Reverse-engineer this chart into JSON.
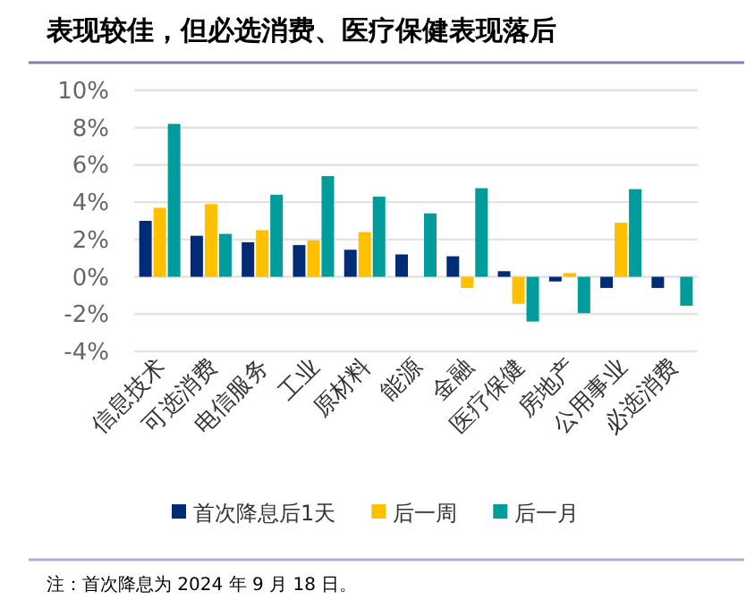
{
  "chart_data": {
    "type": "bar",
    "title": "表现较佳，但必选消费、医疗保健表现落后",
    "categories": [
      "信息技术",
      "可选消费",
      "电信服务",
      "工业",
      "原材料",
      "能源",
      "金融",
      "医疗保健",
      "房地产",
      "公用事业",
      "必选消费"
    ],
    "series": [
      {
        "name": "首次降息后1天",
        "color": "#002c77",
        "values": [
          3.0,
          2.2,
          1.85,
          1.7,
          1.45,
          1.2,
          1.1,
          0.3,
          -0.25,
          -0.6,
          -0.6
        ]
      },
      {
        "name": "后一周",
        "color": "#ffc000",
        "values": [
          3.7,
          3.9,
          2.5,
          1.95,
          2.4,
          null,
          -0.6,
          -1.45,
          0.2,
          2.9,
          null
        ]
      },
      {
        "name": "后一月",
        "color": "#009b9b",
        "values": [
          8.2,
          2.3,
          4.4,
          5.4,
          4.3,
          3.4,
          4.75,
          -2.4,
          -1.95,
          4.7,
          -1.55
        ]
      }
    ],
    "ylim": [
      -4,
      10
    ],
    "yticks": [
      {
        "value": -4,
        "label": "-4%"
      },
      {
        "value": -2,
        "label": "-2%"
      },
      {
        "value": 0,
        "label": "0%"
      },
      {
        "value": 2,
        "label": "2%"
      },
      {
        "value": 4,
        "label": "4%"
      },
      {
        "value": 6,
        "label": "6%"
      },
      {
        "value": 8,
        "label": "8%"
      },
      {
        "value": 10,
        "label": "10%"
      }
    ],
    "grid": "y",
    "legend": "bottom",
    "annotations": [
      "注：首次降息为 2024 年 9 月 18 日。"
    ]
  }
}
